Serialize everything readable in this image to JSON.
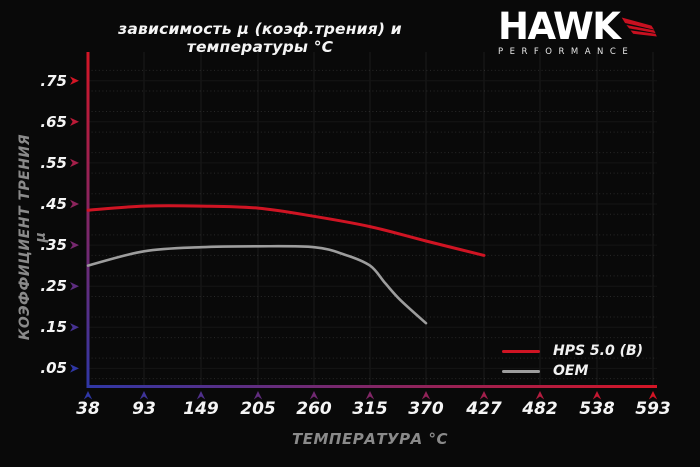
{
  "header": {
    "title": "зависимость µ (коэф.трения) и температуры °C",
    "logo": {
      "brand": "HAWK",
      "subtitle": "PERFORMANCE"
    }
  },
  "chart_data": {
    "type": "line",
    "title": "зависимость µ (коэф.трения) и температуры °C",
    "xlabel": "ТЕМПЕРАТУРА °C",
    "ylabel": "КОЭФФИЦИЕНТ ТРЕНИЯ µ",
    "xlim": [
      38,
      593
    ],
    "ylim": [
      0,
      0.8
    ],
    "x_ticks": [
      38,
      93,
      149,
      205,
      260,
      315,
      370,
      427,
      482,
      538,
      593
    ],
    "y_ticks": [
      0.75,
      0.65,
      0.55,
      0.45,
      0.35,
      0.25,
      0.15,
      0.05
    ],
    "y_tick_labels": [
      ".75",
      ".65",
      ".55",
      ".45",
      ".35",
      ".25",
      ".15",
      ".05"
    ],
    "grid": true,
    "legend_position": "lower right",
    "series": [
      {
        "name": "HPS 5.0 (B)",
        "color": "#cf1423",
        "x": [
          38,
          93,
          149,
          205,
          260,
          315,
          370,
          427
        ],
        "values": [
          0.435,
          0.445,
          0.445,
          0.44,
          0.42,
          0.395,
          0.36,
          0.325
        ]
      },
      {
        "name": "OEM",
        "color": "#9d9d9d",
        "x": [
          38,
          93,
          149,
          205,
          260,
          290,
          315,
          330,
          345,
          370
        ],
        "values": [
          0.3,
          0.335,
          0.345,
          0.347,
          0.345,
          0.327,
          0.3,
          0.257,
          0.216,
          0.16
        ]
      }
    ]
  },
  "colors": {
    "background": "#090909",
    "hot": "#d41525",
    "cold": "#2f37a6",
    "grid_vertical": "#1c1c1c",
    "grid_horizontal_solid": "#151515",
    "grid_horizontal_dotted": "rgba(255,255,255,0.13)",
    "text_primary": "#f5f5f5",
    "text_secondary": "#8a8a8a",
    "logo_red": "#c81020"
  }
}
